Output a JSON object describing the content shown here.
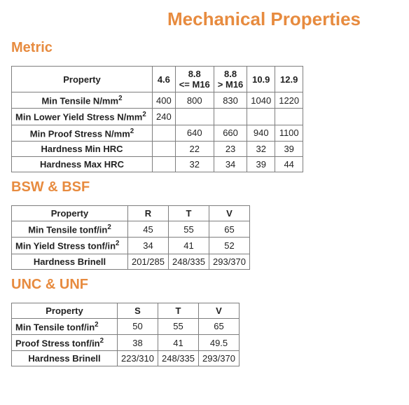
{
  "title": "Mechanical Properties",
  "colors": {
    "heading": "#e78b3f",
    "border": "#7e7e7e",
    "text": "#222222",
    "background": "#ffffff"
  },
  "sections": {
    "metric": {
      "title": "Metric",
      "columns": [
        "Property",
        "4.6",
        "8.8\n<= M16",
        "8.8\n> M16",
        "10.9",
        "12.9"
      ],
      "rows": [
        {
          "label": "Min Tensile N/mm",
          "sup": "2",
          "values": [
            "400",
            "800",
            "830",
            "1040",
            "1220"
          ]
        },
        {
          "label": "Min Lower Yield Stress N/mm",
          "sup": "2",
          "align": "left",
          "values": [
            "240",
            "",
            "",
            "",
            ""
          ]
        },
        {
          "label": "Min Proof Stress N/mm",
          "sup": "2",
          "values": [
            "",
            "640",
            "660",
            "940",
            "1100"
          ]
        },
        {
          "label": "Hardness Min HRC",
          "values": [
            "",
            "22",
            "23",
            "32",
            "39"
          ]
        },
        {
          "label": "Hardness Max HRC",
          "values": [
            "",
            "32",
            "34",
            "39",
            "44"
          ]
        }
      ]
    },
    "bsw": {
      "title": "BSW & BSF",
      "columns": [
        "Property",
        "R",
        "T",
        "V"
      ],
      "rows": [
        {
          "label": "Min Tensile tonf/in",
          "sup": "2",
          "values": [
            "45",
            "55",
            "65"
          ]
        },
        {
          "label": "Min Yield Stress tonf/in",
          "sup": "2",
          "align": "left",
          "values": [
            "34",
            "41",
            "52"
          ]
        },
        {
          "label": "Hardness Brinell",
          "values": [
            "201/285",
            "248/335",
            "293/370"
          ]
        }
      ]
    },
    "unc": {
      "title": "UNC & UNF",
      "columns": [
        "Property",
        "S",
        "T",
        "V"
      ],
      "rows": [
        {
          "label": "Min Tensile tonf/in",
          "sup": "2",
          "align": "left",
          "values": [
            "50",
            "55",
            "65"
          ]
        },
        {
          "label": "Proof Stress tonf/in",
          "sup": "2",
          "align": "left",
          "values": [
            "38",
            "41",
            "49.5"
          ]
        },
        {
          "label": "Hardness Brinell",
          "values": [
            "223/310",
            "248/335",
            "293/370"
          ]
        }
      ]
    }
  }
}
